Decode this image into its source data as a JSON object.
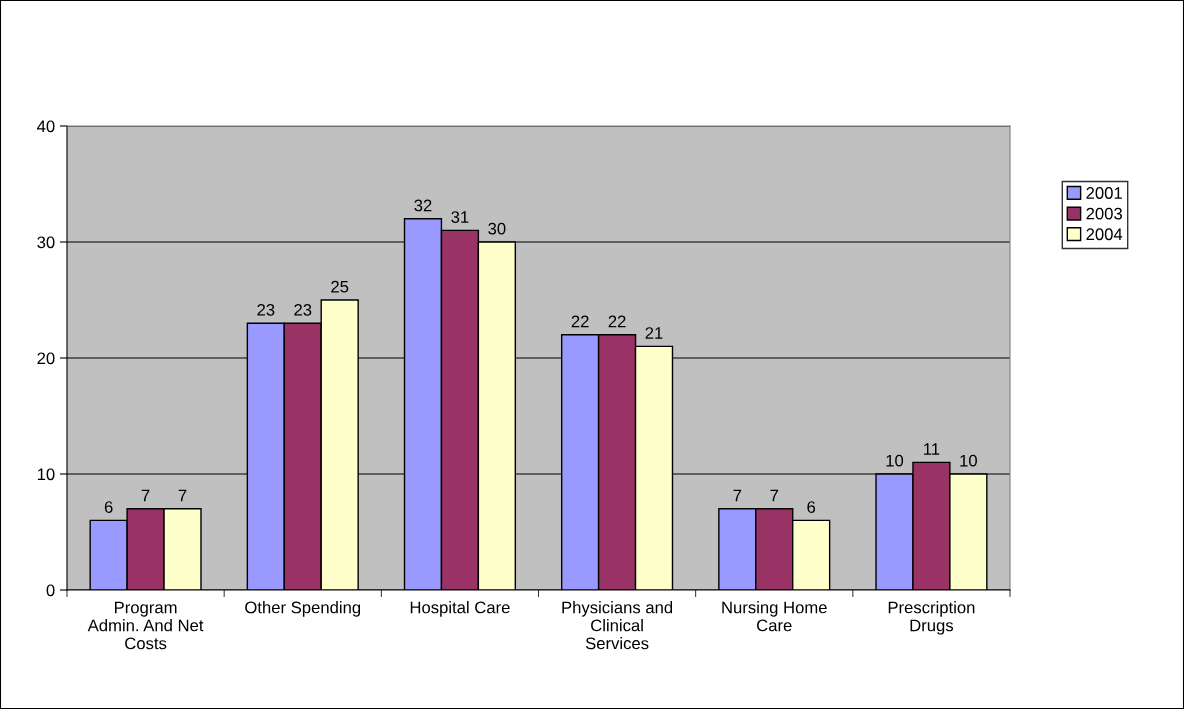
{
  "chart_data": {
    "type": "bar",
    "categories": [
      "Program\nAdmin. And Net\nCosts",
      "Other Spending",
      "Hospital Care",
      "Physicians and\nClinical\nServices",
      "Nursing Home\nCare",
      "Prescription\nDrugs"
    ],
    "series": [
      {
        "name": "2001",
        "color": "#9999ff",
        "values": [
          6,
          23,
          32,
          22,
          7,
          10
        ]
      },
      {
        "name": "2003",
        "color": "#993366",
        "values": [
          7,
          23,
          31,
          22,
          7,
          11
        ]
      },
      {
        "name": "2004",
        "color": "#ffffcc",
        "values": [
          7,
          25,
          30,
          21,
          6,
          10
        ]
      }
    ],
    "ylim": [
      0,
      40
    ],
    "yticks": [
      0,
      10,
      20,
      30,
      40
    ],
    "grid": "y",
    "legend": "right",
    "data_labels": true
  }
}
